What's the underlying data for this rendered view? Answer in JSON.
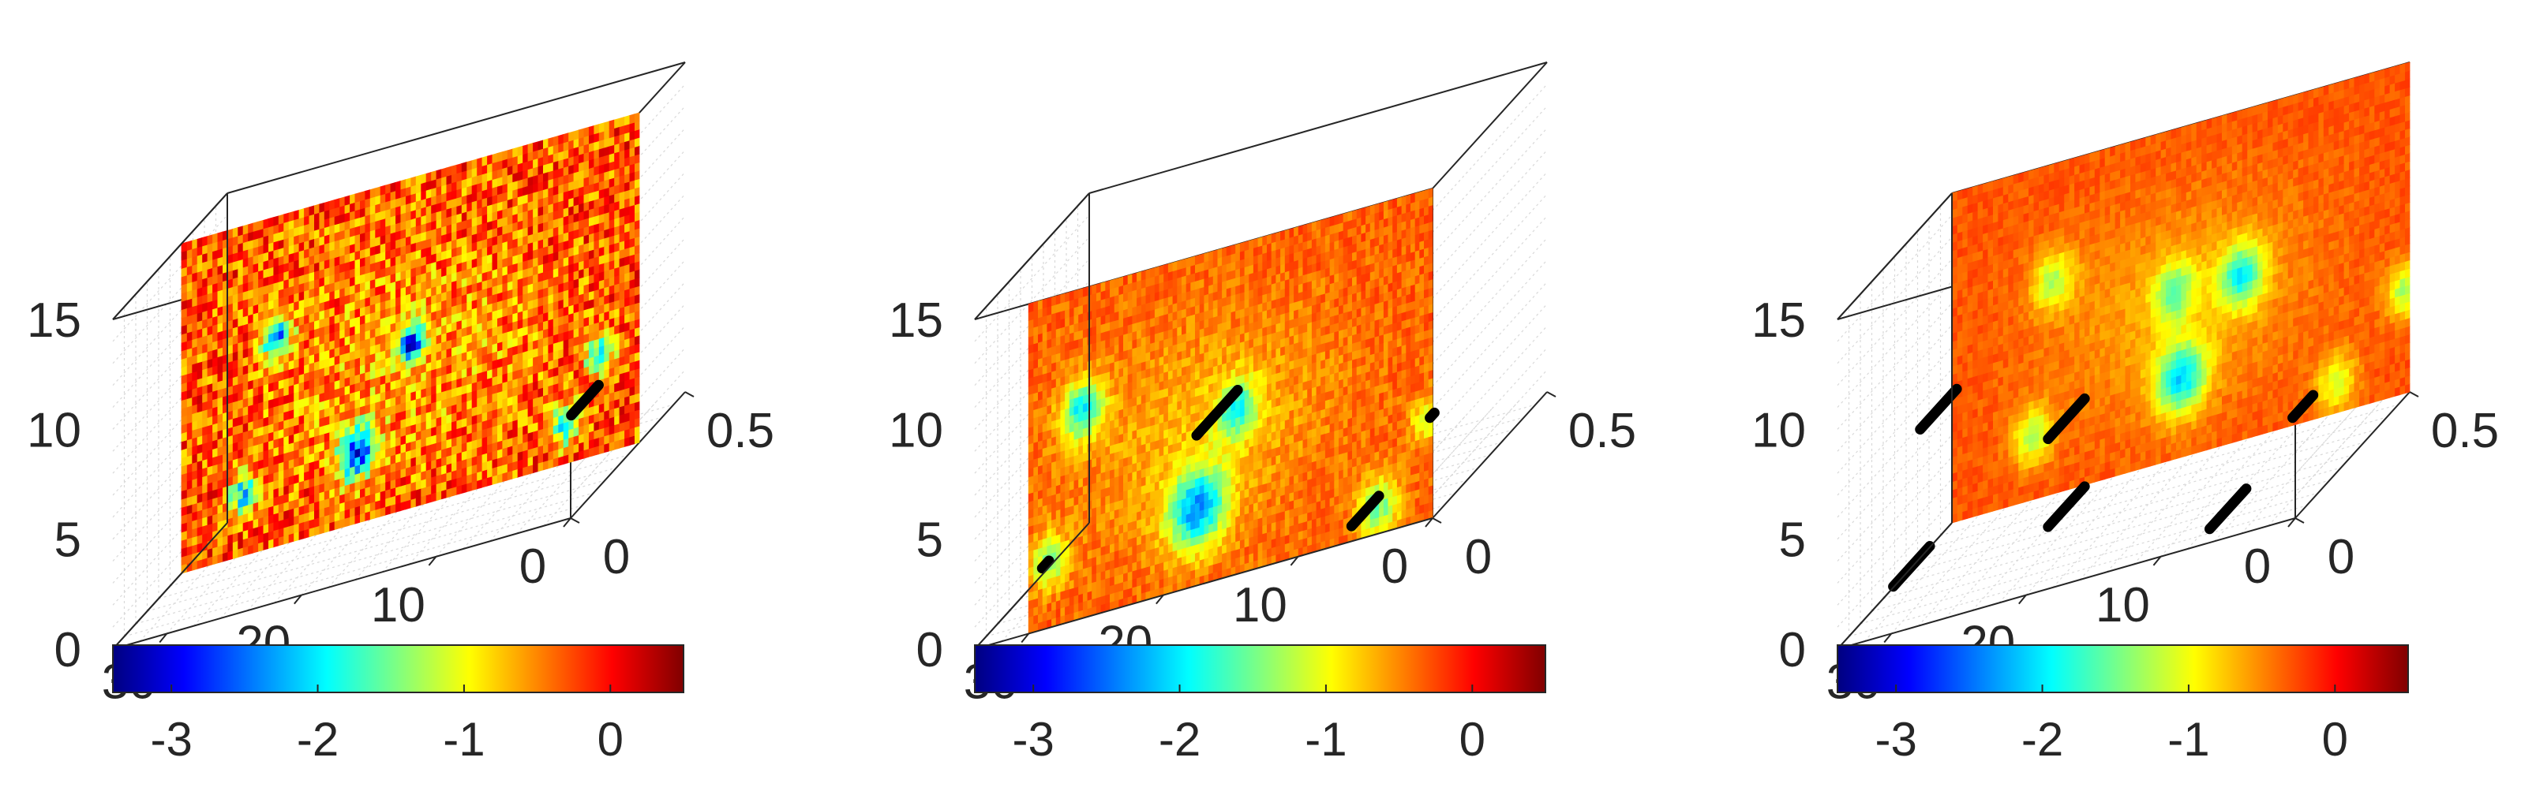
{
  "chart_data": [
    {
      "type": "heatmap",
      "title": "",
      "view": "3d-slice",
      "axes": {
        "x": {
          "ticks": [
            "0",
            "10",
            "20",
            "30"
          ],
          "range": [
            0,
            34
          ]
        },
        "y": {
          "ticks": [
            "0",
            "0.5"
          ],
          "range": [
            0,
            0.5
          ]
        },
        "z": {
          "ticks": [
            "0",
            "5",
            "10",
            "15"
          ],
          "range": [
            0,
            15
          ]
        }
      },
      "grid": true,
      "colormap": "jet",
      "colorbar": {
        "ticks": [
          "-3",
          "-2",
          "-1",
          "0"
        ],
        "range": [
          -3.4,
          0.5
        ],
        "placement": "bottom"
      },
      "slice": {
        "y": 0.3,
        "x_range": [
          0,
          34
        ],
        "z_range": [
          0,
          15
        ]
      },
      "background_level": -0.3,
      "noise": 0.55,
      "hotspots": [
        {
          "x": 27,
          "z": 9.5,
          "level": -2.4,
          "spread": 0.9
        },
        {
          "x": 17,
          "z": 7.5,
          "level": -2.7,
          "spread": 0.8
        },
        {
          "x": 21,
          "z": 3.2,
          "level": -2.6,
          "spread": 1.2
        },
        {
          "x": 29.5,
          "z": 2.8,
          "level": -2.0,
          "spread": 0.9
        },
        {
          "x": 5.5,
          "z": 1.8,
          "level": -2.1,
          "spread": 0.9
        },
        {
          "x": 3,
          "z": 4.6,
          "level": -1.9,
          "spread": 0.9
        }
      ],
      "markers": [
        {
          "x": 0.3,
          "z": 4.5,
          "y0": 0.02,
          "y1": 0.14
        }
      ]
    },
    {
      "type": "heatmap",
      "title": "",
      "view": "3d-slice",
      "axes": {
        "x": {
          "ticks": [
            "0",
            "10",
            "20",
            "30"
          ],
          "range": [
            0,
            34
          ]
        },
        "y": {
          "ticks": [
            "0",
            "0.5"
          ],
          "range": [
            0,
            0.5
          ]
        },
        "z": {
          "ticks": [
            "0",
            "5",
            "10",
            "15"
          ],
          "range": [
            0,
            15
          ]
        }
      },
      "grid": true,
      "colormap": "jet",
      "colorbar": {
        "ticks": [
          "-3",
          "-2",
          "-1",
          "0"
        ],
        "range": [
          -3.4,
          0.5
        ],
        "placement": "bottom"
      },
      "slice": {
        "y": 0.0,
        "x_range": [
          0,
          30
        ],
        "z_range": [
          0,
          15
        ]
      },
      "background_level": -0.35,
      "noise": 0.2,
      "hotspots": [
        {
          "x": 26,
          "z": 9.5,
          "level": -1.9,
          "spread": 1.3
        },
        {
          "x": 14.5,
          "z": 7.5,
          "level": -1.6,
          "spread": 1.3
        },
        {
          "x": 17.5,
          "z": 3.5,
          "level": -2.2,
          "spread": 1.8
        },
        {
          "x": 28.5,
          "z": 3.0,
          "level": -1.4,
          "spread": 1.2
        },
        {
          "x": 4,
          "z": 1.2,
          "level": -1.5,
          "spread": 1.3
        },
        {
          "x": 0.4,
          "z": 4.6,
          "level": -1.2,
          "spread": 1.0
        }
      ],
      "markers": [
        {
          "x": 29,
          "z": 2.8,
          "y0": 0.0,
          "y1": 0.03
        },
        {
          "x": 16,
          "z": 7.6,
          "y0": -0.09,
          "y1": 0.09
        },
        {
          "x": 5,
          "z": 1.2,
          "y0": -0.06,
          "y1": 0.06
        },
        {
          "x": 0.2,
          "z": 4.6,
          "y0": 0.0,
          "y1": 0.02
        }
      ]
    },
    {
      "type": "heatmap",
      "title": "",
      "view": "3d-slice",
      "axes": {
        "x": {
          "ticks": [
            "0",
            "10",
            "20",
            "30"
          ],
          "range": [
            0,
            34
          ]
        },
        "y": {
          "ticks": [
            "0",
            "0.5"
          ],
          "range": [
            0,
            0.5
          ]
        },
        "z": {
          "ticks": [
            "0",
            "5",
            "10",
            "15"
          ],
          "range": [
            0,
            15
          ]
        }
      },
      "grid": true,
      "colormap": "jet",
      "colorbar": {
        "ticks": [
          "-3",
          "-2",
          "-1",
          "0"
        ],
        "range": [
          -3.4,
          0.5
        ],
        "placement": "bottom"
      },
      "slice": {
        "y": 0.5,
        "x_range": [
          0,
          34
        ],
        "z_range": [
          0,
          15
        ]
      },
      "background_level": -0.3,
      "noise": 0.12,
      "hotspots": [
        {
          "x": 26.5,
          "z": 9.7,
          "level": -1.2,
          "spread": 1.3
        },
        {
          "x": 17.5,
          "z": 7.6,
          "level": -1.3,
          "spread": 1.3
        },
        {
          "x": 12.5,
          "z": 7.5,
          "level": -1.7,
          "spread": 1.4
        },
        {
          "x": 17,
          "z": 3.6,
          "level": -1.9,
          "spread": 1.6
        },
        {
          "x": 28,
          "z": 2.9,
          "level": -1.2,
          "spread": 1.3
        },
        {
          "x": 5.5,
          "z": 1.4,
          "level": -1.1,
          "spread": 1.3
        },
        {
          "x": 0.3,
          "z": 4.7,
          "level": -1.3,
          "spread": 1.2
        }
      ],
      "markers": [
        {
          "x": 26.5,
          "z": 9.6,
          "y0": -0.08,
          "y1": 0.08
        },
        {
          "x": 17,
          "z": 7.5,
          "y0": -0.08,
          "y1": 0.08
        },
        {
          "x": 17,
          "z": 3.5,
          "y0": -0.08,
          "y1": 0.08
        },
        {
          "x": 28.5,
          "z": 2.8,
          "y0": -0.08,
          "y1": 0.08
        },
        {
          "x": 5,
          "z": 1.3,
          "y0": -0.08,
          "y1": 0.08
        },
        {
          "x": 0.2,
          "z": 4.6,
          "y0": 0.0,
          "y1": 0.09
        }
      ]
    }
  ]
}
